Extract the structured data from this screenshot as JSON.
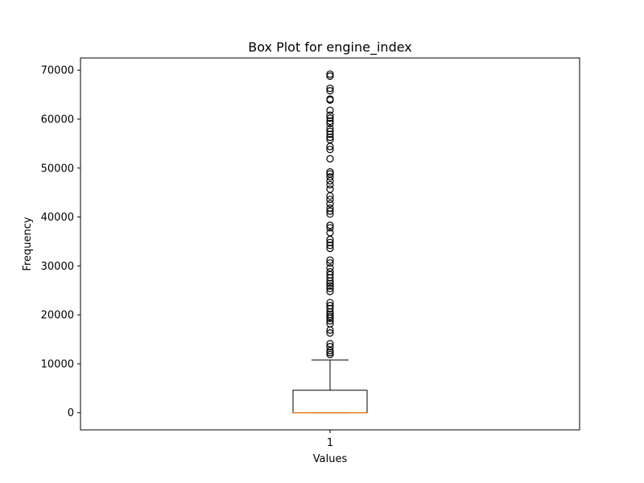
{
  "chart_data": {
    "type": "box",
    "title": "Box Plot for engine_index",
    "xlabel": "Values",
    "ylabel": "Frequency",
    "categories": [
      "1"
    ],
    "ylim": [
      -3500,
      72500
    ],
    "yticks": [
      0,
      10000,
      20000,
      30000,
      40000,
      50000,
      60000,
      70000
    ],
    "grid": false,
    "box": {
      "min": 0,
      "q1": 0,
      "median": 0,
      "q3": 4600,
      "whisker_low": 0,
      "whisker_high": 10800
    },
    "outliers": [
      11900,
      12300,
      12700,
      13500,
      14100,
      16300,
      16900,
      18200,
      18800,
      19300,
      19700,
      20100,
      20600,
      21300,
      21900,
      22500,
      24800,
      25400,
      25900,
      26400,
      26900,
      27600,
      28200,
      28800,
      29600,
      30600,
      31200,
      33600,
      34200,
      34800,
      35400,
      36800,
      37800,
      38300,
      40600,
      41200,
      41800,
      42700,
      43600,
      44300,
      45700,
      46600,
      47400,
      48200,
      48800,
      49200,
      51900,
      53800,
      54400,
      55800,
      56300,
      56900,
      57500,
      58100,
      59100,
      59600,
      60200,
      60800,
      61800,
      63900,
      64100,
      65800,
      66300,
      68800,
      69200
    ],
    "colors": {
      "box": "#000000",
      "median": "#ff7f0e",
      "outlier": "#000000"
    }
  }
}
